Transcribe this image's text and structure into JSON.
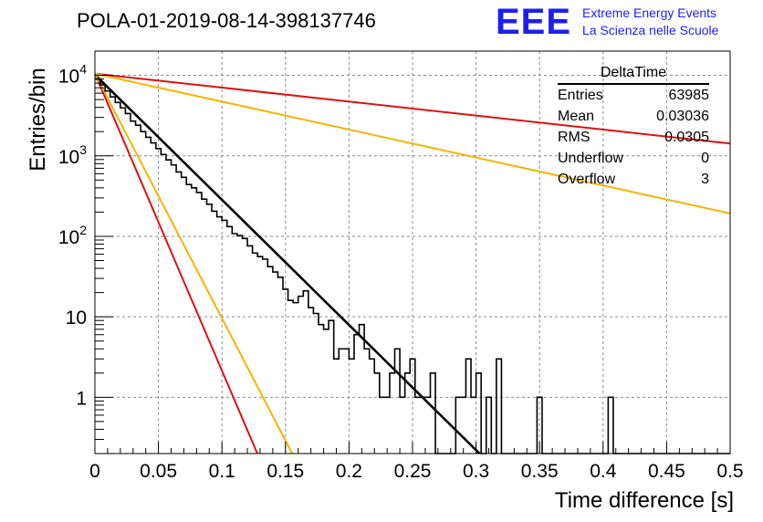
{
  "title": "POLA-01-2019-08-14-398137746",
  "logo": {
    "mark": "EEE",
    "line1": "Extreme Energy Events",
    "line2": "La Scienza nelle Scuole"
  },
  "stats_box": {
    "title": "DeltaTime",
    "rows": [
      {
        "label": "Entries",
        "value": "63985"
      },
      {
        "label": "Mean",
        "value": "0.03036"
      },
      {
        "label": "RMS",
        "value": "0.0305"
      },
      {
        "label": "Underflow",
        "value": "0"
      },
      {
        "label": "Overflow",
        "value": "3"
      }
    ]
  },
  "chart_data": {
    "type": "histogram",
    "xlabel": "Time difference [s]",
    "ylabel": "Entries/bin",
    "xlim": [
      0,
      0.5
    ],
    "ylim": [
      0.2,
      20000
    ],
    "yscale": "log",
    "grid": true,
    "x_ticks": [
      "0",
      "0.05",
      "0.1",
      "0.15",
      "0.2",
      "0.25",
      "0.3",
      "0.35",
      "0.4",
      "0.45",
      "0.5"
    ],
    "y_ticks": [
      {
        "value": 1,
        "base": "1",
        "exp": ""
      },
      {
        "value": 10,
        "base": "10",
        "exp": ""
      },
      {
        "value": 100,
        "base": "10",
        "exp": "2"
      },
      {
        "value": 1000,
        "base": "10",
        "exp": "3"
      },
      {
        "value": 10000,
        "base": "10",
        "exp": "4"
      }
    ],
    "histogram": {
      "bin_width": 0.004,
      "color": "#000000",
      "counts": [
        9000,
        7600,
        6400,
        5400,
        4600,
        3950,
        3350,
        2700,
        2400,
        2000,
        1700,
        1450,
        1230,
        1040,
        890,
        770,
        630,
        540,
        440,
        400,
        350,
        290,
        250,
        205,
        175,
        158,
        132,
        108,
        102,
        94,
        76,
        62,
        56,
        52,
        42,
        36,
        31,
        22,
        16,
        15,
        18,
        21,
        13,
        11,
        8,
        7,
        9,
        3,
        4,
        4,
        3,
        6,
        8,
        4,
        3,
        2,
        1,
        1,
        2,
        4,
        1,
        2,
        3,
        1,
        1,
        1,
        2,
        0,
        0,
        0,
        0,
        1,
        1,
        3,
        1,
        2,
        0,
        1,
        0,
        3,
        0,
        0,
        0,
        0,
        0,
        0,
        0,
        1,
        0,
        0,
        0,
        0,
        0,
        0,
        0,
        0,
        0,
        0,
        0,
        0,
        0,
        1,
        0,
        0,
        0,
        0,
        0,
        0,
        0,
        0,
        0,
        0,
        0,
        0,
        0,
        0,
        0,
        0,
        0,
        0,
        0,
        0,
        0,
        0,
        0
      ]
    },
    "fits": [
      {
        "color": "#000000",
        "y0": 10200,
        "slope_per_s": -35.8
      },
      {
        "color": "#dd1111",
        "y0": 10500,
        "slope_per_s": -85.0
      },
      {
        "color": "#f5b400",
        "y0": 10500,
        "slope_per_s": -70.0
      },
      {
        "color": "#dd1111",
        "y0": 10500,
        "slope_per_s": -4.0
      },
      {
        "color": "#f5b400",
        "y0": 10500,
        "slope_per_s": -8.0
      }
    ]
  }
}
